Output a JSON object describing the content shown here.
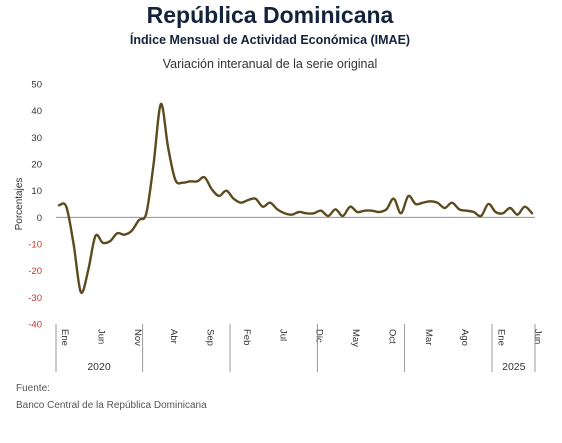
{
  "header": {
    "title": "República Dominicana",
    "subtitle": "Índice Mensual de Actividad Económica (IMAE)"
  },
  "footer": {
    "source_label": "Fuente:",
    "source_name": "Banco Central de la República Dominicana"
  },
  "chart_data": {
    "type": "line",
    "title": "Variación interanual de la serie original",
    "ylabel": "Porcentajes",
    "xlabel": "",
    "ylim": [
      -40,
      50
    ],
    "yticks": [
      50,
      40,
      30,
      20,
      10,
      0,
      -10,
      -20,
      -30,
      -40
    ],
    "grid": false,
    "legend": "none",
    "colors": {
      "line": "#5c4b1e",
      "negative_ticks": "#c0392b",
      "axis": "#808080"
    },
    "x": [
      "2020-01",
      "2020-02",
      "2020-03",
      "2020-04",
      "2020-05",
      "2020-06",
      "2020-07",
      "2020-08",
      "2020-09",
      "2020-10",
      "2020-11",
      "2020-12",
      "2021-01",
      "2021-02",
      "2021-03",
      "2021-04",
      "2021-05",
      "2021-06",
      "2021-07",
      "2021-08",
      "2021-09",
      "2021-10",
      "2021-11",
      "2021-12",
      "2022-01",
      "2022-02",
      "2022-03",
      "2022-04",
      "2022-05",
      "2022-06",
      "2022-07",
      "2022-08",
      "2022-09",
      "2022-10",
      "2022-11",
      "2022-12",
      "2023-01",
      "2023-02",
      "2023-03",
      "2023-04",
      "2023-05",
      "2023-06",
      "2023-07",
      "2023-08",
      "2023-09",
      "2023-10",
      "2023-11",
      "2023-12",
      "2024-01",
      "2024-02",
      "2024-03",
      "2024-04",
      "2024-05",
      "2024-06",
      "2024-07",
      "2024-08",
      "2024-09",
      "2024-10",
      "2024-11",
      "2024-12",
      "2025-01",
      "2025-02",
      "2025-03",
      "2025-04",
      "2025-05",
      "2025-06"
    ],
    "series": [
      {
        "values": [
          4.5,
          4.0,
          -10.0,
          -28.0,
          -20.0,
          -7.0,
          -9.5,
          -9.0,
          -6.0,
          -6.5,
          -5.0,
          -1.0,
          1.5,
          20.0,
          42.5,
          26.0,
          14.0,
          13.0,
          13.5,
          13.5,
          15.0,
          10.5,
          8.0,
          10.0,
          7.0,
          5.5,
          6.5,
          7.0,
          4.0,
          5.5,
          3.0,
          1.5,
          1.0,
          2.0,
          1.5,
          1.5,
          2.5,
          0.5,
          3.0,
          0.5,
          4.0,
          2.0,
          2.5,
          2.5,
          2.0,
          3.0,
          7.0,
          1.5,
          8.0,
          5.0,
          5.5,
          6.0,
          5.5,
          3.5,
          5.5,
          3.0,
          2.5,
          2.0,
          0.5,
          5.0,
          2.0,
          1.5,
          3.5,
          1.0,
          4.0,
          1.5
        ]
      }
    ],
    "month_labels": [
      {
        "month": "2020-01",
        "label": "Ene"
      },
      {
        "month": "2020-06",
        "label": "Jun"
      },
      {
        "month": "2020-11",
        "label": "Nov"
      },
      {
        "month": "2021-04",
        "label": "Abr"
      },
      {
        "month": "2021-09",
        "label": "Sep"
      },
      {
        "month": "2022-02",
        "label": "Feb"
      },
      {
        "month": "2022-07",
        "label": "Jul"
      },
      {
        "month": "2022-12",
        "label": "Dic"
      },
      {
        "month": "2023-05",
        "label": "May"
      },
      {
        "month": "2023-10",
        "label": "Oct"
      },
      {
        "month": "2024-03",
        "label": "Mar"
      },
      {
        "month": "2024-08",
        "label": "Ago"
      },
      {
        "month": "2025-01",
        "label": "Ene"
      },
      {
        "month": "2025-06",
        "label": "Jun"
      }
    ],
    "year_labels": [
      {
        "year": "2020",
        "from": "2020-01",
        "to": "2020-12"
      },
      {
        "year": "2025",
        "from": "2025-01",
        "to": "2025-06"
      }
    ]
  }
}
